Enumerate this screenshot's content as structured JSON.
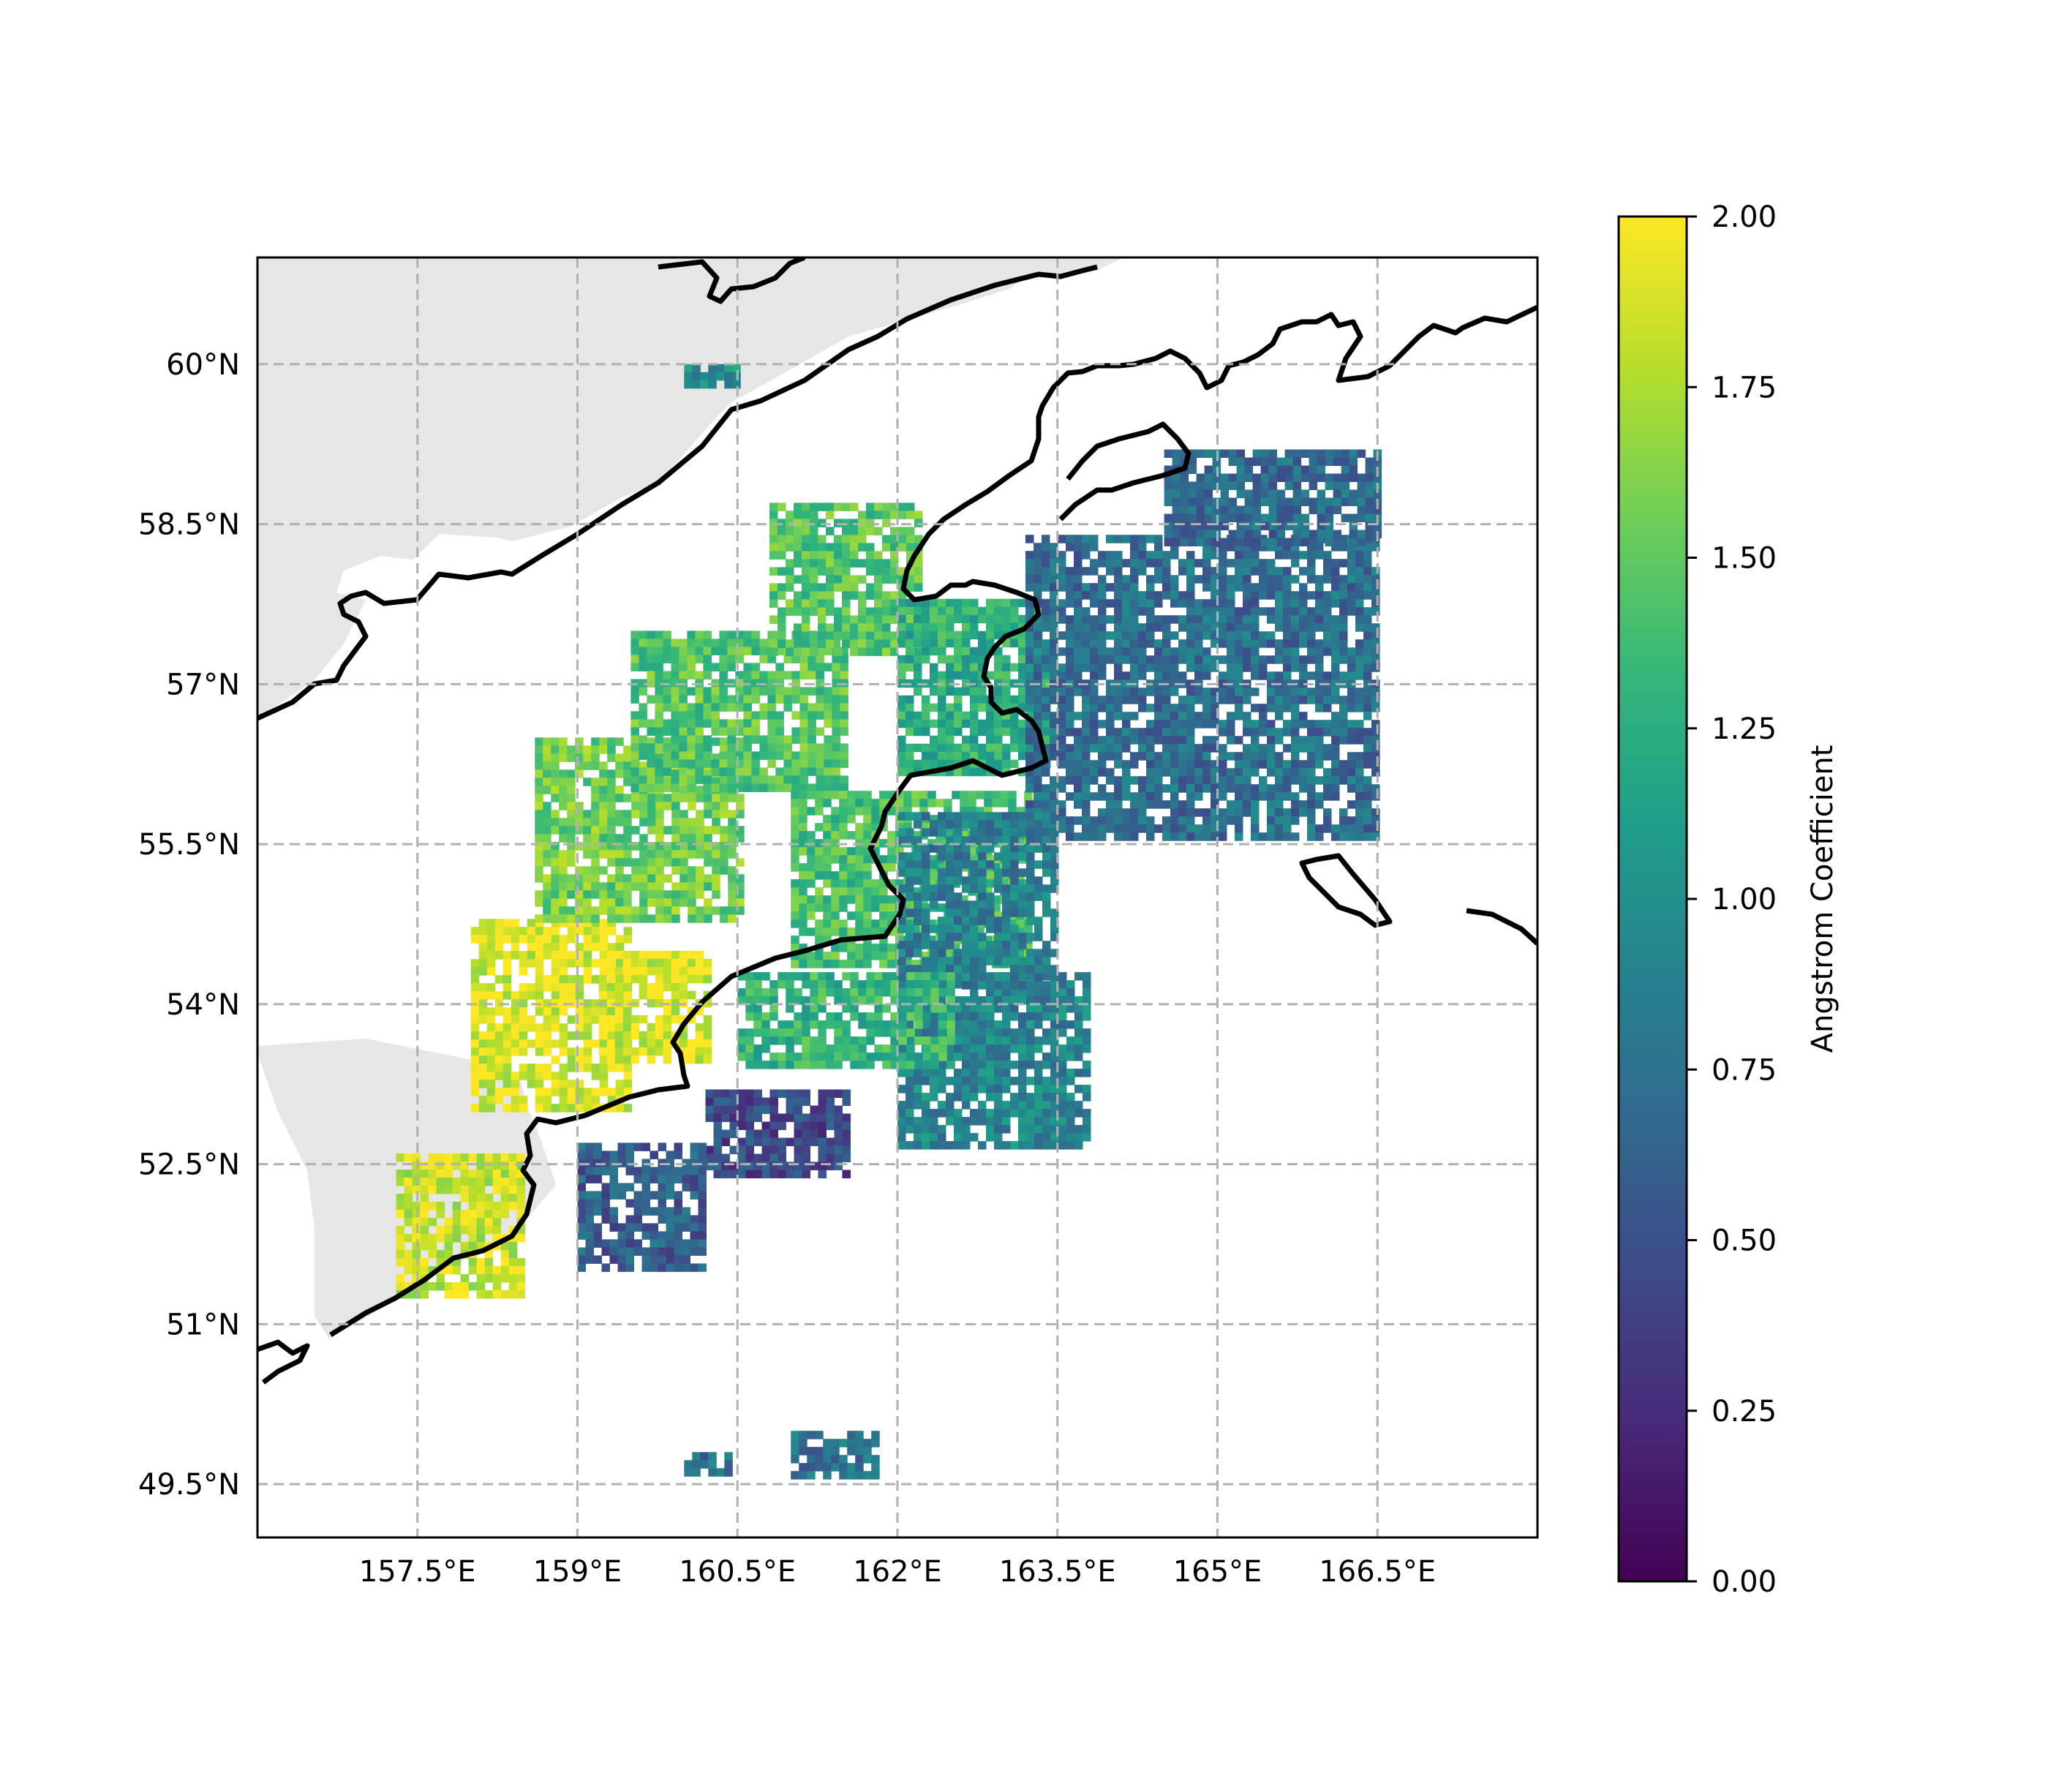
{
  "map": {
    "lon_range": [
      156.0,
      168.0
    ],
    "lat_range": [
      49.0,
      61.0
    ],
    "land_color": "#e6e6e6",
    "coast_color": "#000000",
    "grid": true,
    "grid_color": "#b0b0b0",
    "lon_ticks": [
      157.5,
      159,
      160.5,
      162,
      163.5,
      165,
      166.5
    ],
    "lon_tick_labels": [
      "157.5°E",
      "159°E",
      "160.5°E",
      "162°E",
      "163.5°E",
      "165°E",
      "166.5°E"
    ],
    "lat_ticks": [
      49.5,
      51,
      52.5,
      54,
      55.5,
      57,
      58.5,
      60
    ],
    "lat_tick_labels": [
      "49.5°N",
      "51°N",
      "52.5°N",
      "54°N",
      "55.5°N",
      "57°N",
      "58.5°N",
      "60°N"
    ]
  },
  "colorbar": {
    "label": "Angstrom Coefficient",
    "colormap": "viridis",
    "range": [
      0,
      2
    ],
    "ticks": [
      0,
      0.25,
      0.5,
      0.75,
      1.0,
      1.25,
      1.5,
      1.75,
      2.0
    ],
    "tick_labels": [
      "0.00",
      "0.25",
      "0.50",
      "0.75",
      "1.00",
      "1.25",
      "1.50",
      "1.75",
      "2.00"
    ],
    "stops": [
      "#440154",
      "#482878",
      "#3e4989",
      "#31688e",
      "#26828e",
      "#1f9e89",
      "#35b779",
      "#6ece58",
      "#b5de2b",
      "#fde725"
    ]
  },
  "chart_data": {
    "type": "heatmap",
    "variable": "Angstrom Coefficient",
    "value_range": [
      0,
      2
    ],
    "regions": [
      {
        "lon": [
          157.3,
          158.5
        ],
        "lat": [
          51.3,
          52.6
        ],
        "value": 1.85
      },
      {
        "lon": [
          158.0,
          159.5
        ],
        "lat": [
          53.0,
          54.8
        ],
        "value": 1.9
      },
      {
        "lon": [
          159.2,
          160.2
        ],
        "lat": [
          53.5,
          54.5
        ],
        "value": 1.9
      },
      {
        "lon": [
          158.6,
          160.5
        ],
        "lat": [
          54.8,
          56.5
        ],
        "value": 1.55
      },
      {
        "lon": [
          159.5,
          161.5
        ],
        "lat": [
          56.0,
          57.5
        ],
        "value": 1.45
      },
      {
        "lon": [
          160.8,
          162.2
        ],
        "lat": [
          57.3,
          58.7
        ],
        "value": 1.45
      },
      {
        "lon": [
          161.0,
          163.2
        ],
        "lat": [
          54.4,
          56.0
        ],
        "value": 1.4
      },
      {
        "lon": [
          162.0,
          163.4
        ],
        "lat": [
          56.2,
          57.8
        ],
        "value": 1.25
      },
      {
        "lon": [
          163.2,
          166.5
        ],
        "lat": [
          55.6,
          58.4
        ],
        "value": 0.72
      },
      {
        "lon": [
          164.5,
          166.5
        ],
        "lat": [
          58.3,
          59.2
        ],
        "value": 0.7
      },
      {
        "lon": [
          162.0,
          163.8
        ],
        "lat": [
          52.7,
          54.3
        ],
        "value": 0.9
      },
      {
        "lon": [
          162.0,
          163.5
        ],
        "lat": [
          54.2,
          55.8
        ],
        "value": 0.85
      },
      {
        "lon": [
          160.5,
          162.5
        ],
        "lat": [
          53.4,
          54.3
        ],
        "value": 1.3
      },
      {
        "lon": [
          160.2,
          161.5
        ],
        "lat": [
          52.4,
          53.2
        ],
        "value": 0.45
      },
      {
        "lon": [
          159.0,
          160.2
        ],
        "lat": [
          51.5,
          52.7
        ],
        "value": 0.6
      },
      {
        "lon": [
          160.0,
          160.4
        ],
        "lat": [
          49.6,
          49.8
        ],
        "value": 0.75
      },
      {
        "lon": [
          161.0,
          161.8
        ],
        "lat": [
          49.6,
          50.0
        ],
        "value": 0.75
      },
      {
        "lon": [
          160.0,
          160.5
        ],
        "lat": [
          59.8,
          60.0
        ],
        "value": 1.0
      }
    ]
  }
}
